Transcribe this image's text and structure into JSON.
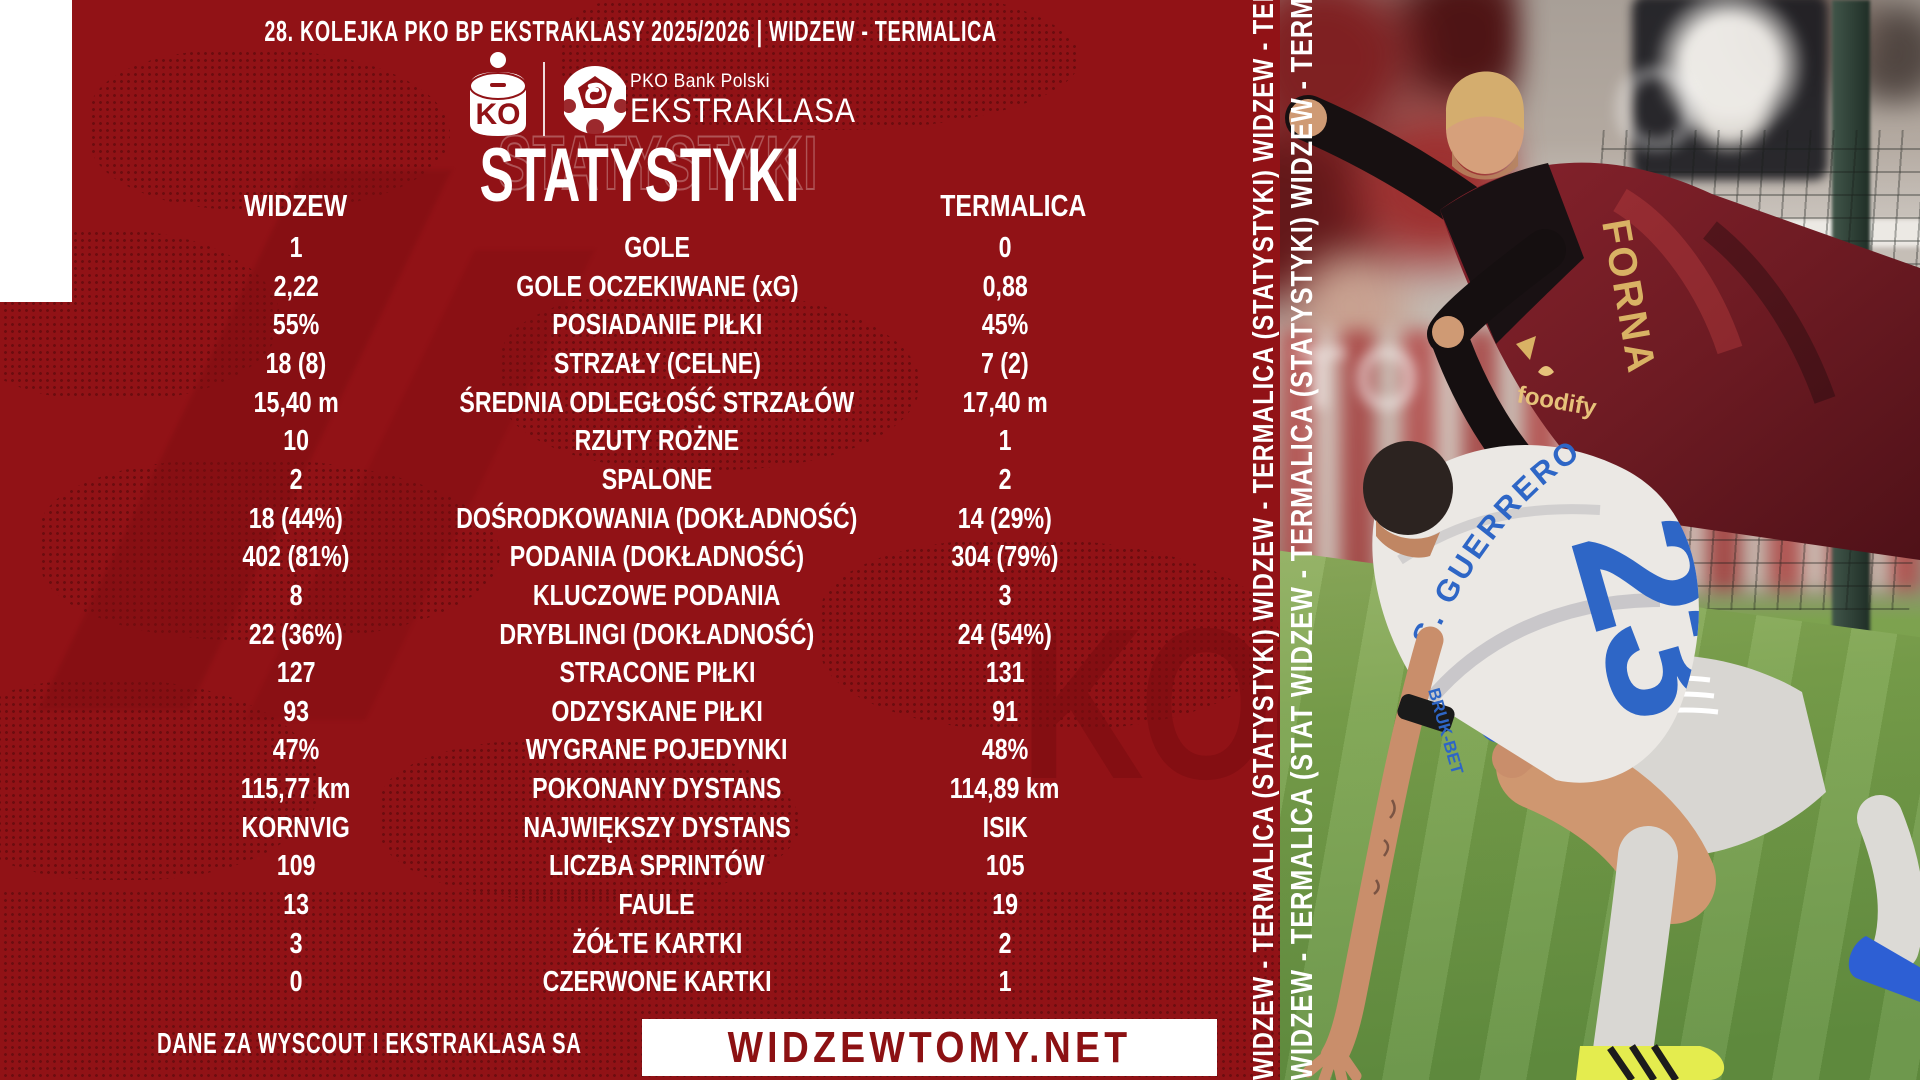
{
  "header": {
    "line": "28. KOLEJKA PKO BP EKSTRAKLASY 2025/2026 | WIDZEW - TERMALICA"
  },
  "branding": {
    "pko_icon_text": "KO",
    "league_line1": "PKO Bank Polski",
    "league_line2": "EKSTRAKLASA"
  },
  "title": {
    "main": "STATYSTYKI",
    "ghost": "STATYSTYKI"
  },
  "table": {
    "home_team": "WIDZEW",
    "away_team": "TERMALICA",
    "rows": [
      {
        "home": "1",
        "label": "GOLE",
        "away": "0"
      },
      {
        "home": "2,22",
        "label": "GOLE OCZEKIWANE (xG)",
        "away": "0,88"
      },
      {
        "home": "55%",
        "label": "POSIADANIE PIŁKI",
        "away": "45%"
      },
      {
        "home": "18 (8)",
        "label": "STRZAŁY (CELNE)",
        "away": "7 (2)"
      },
      {
        "home": "15,40 m",
        "label": "ŚREDNIA ODLEGŁOŚĆ STRZAŁÓW",
        "away": "17,40 m"
      },
      {
        "home": "10",
        "label": "RZUTY ROŻNE",
        "away": "1"
      },
      {
        "home": "2",
        "label": "SPALONE",
        "away": "2"
      },
      {
        "home": "18 (44%)",
        "label": "DOŚRODKOWANIA (DOKŁADNOŚĆ)",
        "away": "14 (29%)"
      },
      {
        "home": "402 (81%)",
        "label": "PODANIA (DOKŁADNOŚĆ)",
        "away": "304 (79%)"
      },
      {
        "home": "8",
        "label": "KLUCZOWE PODANIA",
        "away": "3"
      },
      {
        "home": "22 (36%)",
        "label": "DRYBLINGI (DOKŁADNOŚĆ)",
        "away": "24 (54%)"
      },
      {
        "home": "127",
        "label": "STRACONE PIŁKI",
        "away": "131"
      },
      {
        "home": "93",
        "label": "ODZYSKANE PIŁKI",
        "away": "91"
      },
      {
        "home": "47%",
        "label": "WYGRANE POJEDYNKI",
        "away": "48%"
      },
      {
        "home": "115,77 km",
        "label": "POKONANY DYSTANS",
        "away": "114,89 km"
      },
      {
        "home": "KORNVIG",
        "label": "NAJWIĘKSZY DYSTANS",
        "away": "ISIK"
      },
      {
        "home": "109",
        "label": "LICZBA SPRINTÓW",
        "away": "105"
      },
      {
        "home": "13",
        "label": "FAULE",
        "away": "19"
      },
      {
        "home": "3",
        "label": "ŻÓŁTE KARTKI",
        "away": "2"
      },
      {
        "home": "0",
        "label": "CZERWONE KARTKI",
        "away": "1"
      }
    ]
  },
  "footer": {
    "source": "DANE ZA WYSCOUT I EKSTRAKLASA SA",
    "site": "WIDZEWTOMY.NET"
  },
  "side_strip": {
    "text": "WIDZEW - TERMALICA (STATYSTYKI)",
    "repeat_count": 5
  },
  "watermark": {
    "letters": "KO("
  },
  "photo": {
    "home_jersey_name_fragment": "FORNA",
    "home_sponsor": "foodify",
    "away_name": "S. GUERRERO",
    "away_number": "23",
    "away_sponsor": "BRUK-BET",
    "banner_letter_top": "O",
    "banner_letter_mid": "TO",
    "colors": {
      "panel_red": "#911216",
      "footer_text": "#8c1113",
      "home_kit": "#6e1b23",
      "home_kit_gold": "#d9b264",
      "away_blue": "#2e66c6",
      "grass": "#7aa24c"
    }
  }
}
